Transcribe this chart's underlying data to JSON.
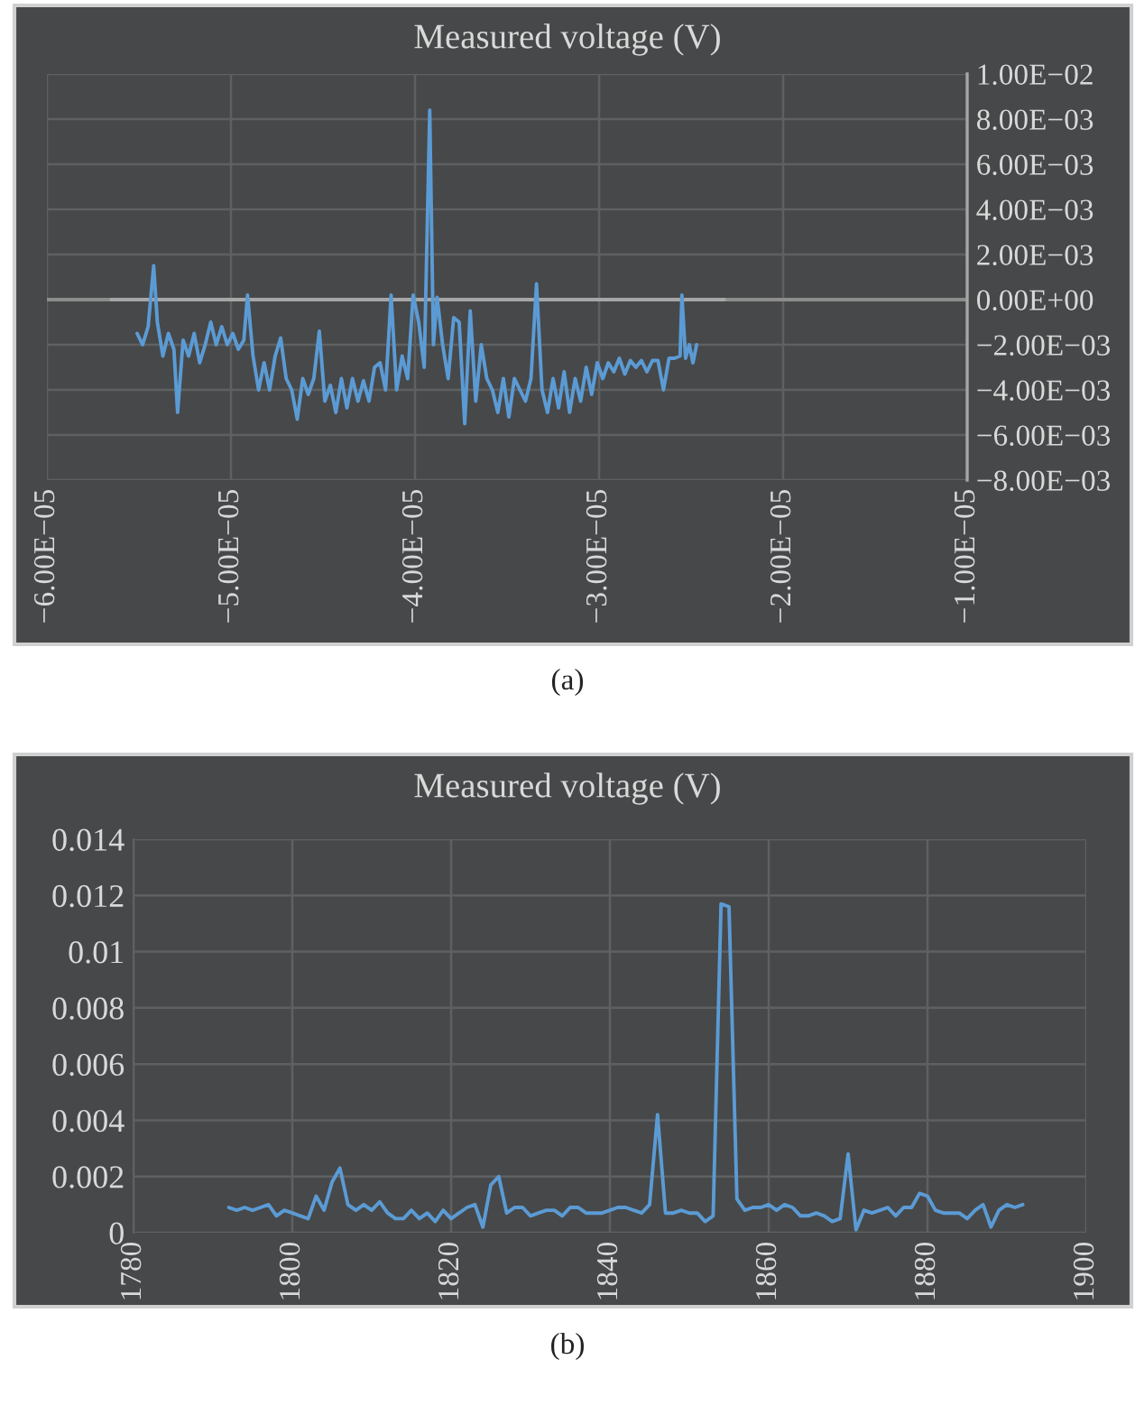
{
  "chart_data": [
    {
      "type": "line",
      "title": "Measured voltage (V)",
      "annotations": [
        "(a)"
      ],
      "grid": true,
      "marker": "none",
      "line_style": "solid",
      "xlim": [
        -6e-05,
        -1e-05
      ],
      "xticks": [
        {
          "value": -6e-05,
          "label": "−6.00E−05"
        },
        {
          "value": -5e-05,
          "label": "−5.00E−05"
        },
        {
          "value": -4e-05,
          "label": "−4.00E−05"
        },
        {
          "value": -3e-05,
          "label": "−3.00E−05"
        },
        {
          "value": -2e-05,
          "label": "−2.00E−05"
        },
        {
          "value": -1e-05,
          "label": "−1.00E−05"
        }
      ],
      "y2lim": [
        -0.008,
        0.01
      ],
      "y2ticks": [
        {
          "value": -0.008,
          "label": "−8.00E−03"
        },
        {
          "value": -0.006,
          "label": "−6.00E−03"
        },
        {
          "value": -0.004,
          "label": "−4.00E−03"
        },
        {
          "value": -0.002,
          "label": "−2.00E−03"
        },
        {
          "value": 0,
          "label": "0.00E+00"
        },
        {
          "value": 0.002,
          "label": "2.00E−03"
        },
        {
          "value": 0.004,
          "label": "4.00E−03"
        },
        {
          "value": 0.006,
          "label": "6.00E−03"
        },
        {
          "value": 0.008,
          "label": "8.00E−03"
        },
        {
          "value": 0.01,
          "label": "1.00E−02"
        }
      ],
      "ref_lines": [
        {
          "axis": "y2",
          "value": 0,
          "color": "#8c8c8c"
        }
      ],
      "series": [
        {
          "color": "#a6a6a6",
          "axis": "y2",
          "x": [
            -5.65e-05,
            -2.32e-05
          ],
          "values": [
            0,
            0
          ]
        },
        {
          "color": "#5b9bd5",
          "axis": "y2",
          "x": [
            -5.51e-05,
            -5.48e-05,
            -5.45e-05,
            -5.42e-05,
            -5.4e-05,
            -5.37e-05,
            -5.34e-05,
            -5.31e-05,
            -5.29e-05,
            -5.26e-05,
            -5.23e-05,
            -5.2e-05,
            -5.17e-05,
            -5.14e-05,
            -5.11e-05,
            -5.08e-05,
            -5.05e-05,
            -5.02e-05,
            -4.99e-05,
            -4.96e-05,
            -4.93e-05,
            -4.91e-05,
            -4.88e-05,
            -4.85e-05,
            -4.82e-05,
            -4.79e-05,
            -4.76e-05,
            -4.73e-05,
            -4.7e-05,
            -4.67e-05,
            -4.64e-05,
            -4.61e-05,
            -4.58e-05,
            -4.55e-05,
            -4.52e-05,
            -4.49e-05,
            -4.46e-05,
            -4.43e-05,
            -4.4e-05,
            -4.37e-05,
            -4.34e-05,
            -4.31e-05,
            -4.28e-05,
            -4.25e-05,
            -4.22e-05,
            -4.19e-05,
            -4.16e-05,
            -4.13e-05,
            -4.1e-05,
            -4.07e-05,
            -4.04e-05,
            -4.01e-05,
            -3.98e-05,
            -3.95e-05,
            -3.92e-05,
            -3.9e-05,
            -3.88e-05,
            -3.85e-05,
            -3.82e-05,
            -3.79e-05,
            -3.76e-05,
            -3.73e-05,
            -3.7e-05,
            -3.67e-05,
            -3.64e-05,
            -3.61e-05,
            -3.58e-05,
            -3.55e-05,
            -3.52e-05,
            -3.49e-05,
            -3.46e-05,
            -3.43e-05,
            -3.4e-05,
            -3.37e-05,
            -3.34e-05,
            -3.31e-05,
            -3.28e-05,
            -3.25e-05,
            -3.22e-05,
            -3.19e-05,
            -3.16e-05,
            -3.13e-05,
            -3.1e-05,
            -3.07e-05,
            -3.04e-05,
            -3.01e-05,
            -2.98e-05,
            -2.95e-05,
            -2.92e-05,
            -2.89e-05,
            -2.86e-05,
            -2.83e-05,
            -2.8e-05,
            -2.77e-05,
            -2.74e-05,
            -2.71e-05,
            -2.68e-05,
            -2.65e-05,
            -2.62e-05,
            -2.59e-05,
            -2.56e-05,
            -2.55e-05,
            -2.53e-05,
            -2.51e-05,
            -2.49e-05,
            -2.47e-05
          ],
          "values": [
            -0.0015,
            -0.002,
            -0.0012,
            0.0015,
            -0.001,
            -0.0025,
            -0.0015,
            -0.0022,
            -0.005,
            -0.0018,
            -0.0025,
            -0.0015,
            -0.0028,
            -0.002,
            -0.001,
            -0.002,
            -0.0012,
            -0.002,
            -0.0015,
            -0.0022,
            -0.0018,
            0.0002,
            -0.0025,
            -0.004,
            -0.0028,
            -0.004,
            -0.0025,
            -0.0017,
            -0.0035,
            -0.004,
            -0.0053,
            -0.0035,
            -0.0042,
            -0.0035,
            -0.0014,
            -0.0045,
            -0.0038,
            -0.005,
            -0.0035,
            -0.0048,
            -0.0035,
            -0.0045,
            -0.0036,
            -0.0045,
            -0.003,
            -0.0028,
            -0.004,
            0.0002,
            -0.004,
            -0.0025,
            -0.0035,
            0.0002,
            -0.001,
            -0.003,
            0.0084,
            -0.002,
            0.0001,
            -0.002,
            -0.0035,
            -0.0008,
            -0.001,
            -0.0055,
            -0.0005,
            -0.0045,
            -0.002,
            -0.0035,
            -0.004,
            -0.005,
            -0.0035,
            -0.0052,
            -0.0035,
            -0.004,
            -0.0045,
            -0.0035,
            0.0007,
            -0.004,
            -0.005,
            -0.0035,
            -0.0048,
            -0.0032,
            -0.005,
            -0.0035,
            -0.0045,
            -0.003,
            -0.0042,
            -0.0028,
            -0.0035,
            -0.0028,
            -0.0032,
            -0.0026,
            -0.0033,
            -0.0027,
            -0.003,
            -0.0027,
            -0.0032,
            -0.0027,
            -0.0027,
            -0.004,
            -0.0026,
            -0.0026,
            -0.0025,
            0.0002,
            -0.0026,
            -0.002,
            -0.0028,
            -0.002
          ]
        }
      ]
    },
    {
      "type": "line",
      "title": "Measured voltage (V)",
      "annotations": [
        "(b)"
      ],
      "grid": true,
      "marker": "none",
      "line_style": "solid",
      "xlim": [
        1780,
        1900
      ],
      "xticks": [
        1780,
        1800,
        1820,
        1840,
        1860,
        1880,
        1900
      ],
      "ylim": [
        0,
        0.014
      ],
      "yticks": [
        0,
        0.002,
        0.004,
        0.006,
        0.008,
        0.01,
        0.012,
        0.014
      ],
      "series": [
        {
          "color": "#5b9bd5",
          "x": [
            1792,
            1793,
            1794,
            1795,
            1796,
            1797,
            1798,
            1799,
            1800,
            1801,
            1802,
            1803,
            1804,
            1805,
            1806,
            1807,
            1808,
            1809,
            1810,
            1811,
            1812,
            1813,
            1814,
            1815,
            1816,
            1817,
            1818,
            1819,
            1820,
            1821,
            1822,
            1823,
            1824,
            1825,
            1826,
            1827,
            1828,
            1829,
            1830,
            1831,
            1832,
            1833,
            1834,
            1835,
            1836,
            1837,
            1838,
            1839,
            1840,
            1841,
            1842,
            1843,
            1844,
            1845,
            1846,
            1847,
            1848,
            1849,
            1850,
            1851,
            1852,
            1853,
            1854,
            1855,
            1856,
            1857,
            1858,
            1859,
            1860,
            1861,
            1862,
            1863,
            1864,
            1865,
            1866,
            1867,
            1868,
            1869,
            1870,
            1871,
            1872,
            1873,
            1874,
            1875,
            1876,
            1877,
            1878,
            1879,
            1880,
            1881,
            1882,
            1883,
            1884,
            1885,
            1886,
            1887,
            1888,
            1889,
            1890,
            1891,
            1892
          ],
          "values": [
            0.0009,
            0.0008,
            0.0009,
            0.0008,
            0.0009,
            0.001,
            0.0006,
            0.0008,
            0.0007,
            0.0006,
            0.0005,
            0.0013,
            0.0008,
            0.0018,
            0.0023,
            0.001,
            0.0008,
            0.001,
            0.0008,
            0.0011,
            0.0007,
            0.0005,
            0.0005,
            0.0008,
            0.0005,
            0.0007,
            0.0004,
            0.0008,
            0.0005,
            0.0007,
            0.0009,
            0.001,
            0.0002,
            0.0017,
            0.002,
            0.0007,
            0.0009,
            0.0009,
            0.0006,
            0.0007,
            0.0008,
            0.0008,
            0.0006,
            0.0009,
            0.0009,
            0.0007,
            0.0007,
            0.0007,
            0.0008,
            0.0009,
            0.0009,
            0.0008,
            0.0007,
            0.001,
            0.0042,
            0.0007,
            0.0007,
            0.0008,
            0.0007,
            0.0007,
            0.0004,
            0.0006,
            0.0117,
            0.0116,
            0.0012,
            0.0008,
            0.0009,
            0.0009,
            0.001,
            0.0008,
            0.001,
            0.0009,
            0.0006,
            0.0006,
            0.0007,
            0.0006,
            0.0004,
            0.0005,
            0.0028,
            0.0001,
            0.0008,
            0.0007,
            0.0008,
            0.0009,
            0.0006,
            0.0009,
            0.0009,
            0.0014,
            0.0013,
            0.0008,
            0.0007,
            0.0007,
            0.0007,
            0.0005,
            0.0008,
            0.001,
            0.0002,
            0.0008,
            0.001,
            0.0009,
            0.001
          ]
        }
      ]
    }
  ]
}
